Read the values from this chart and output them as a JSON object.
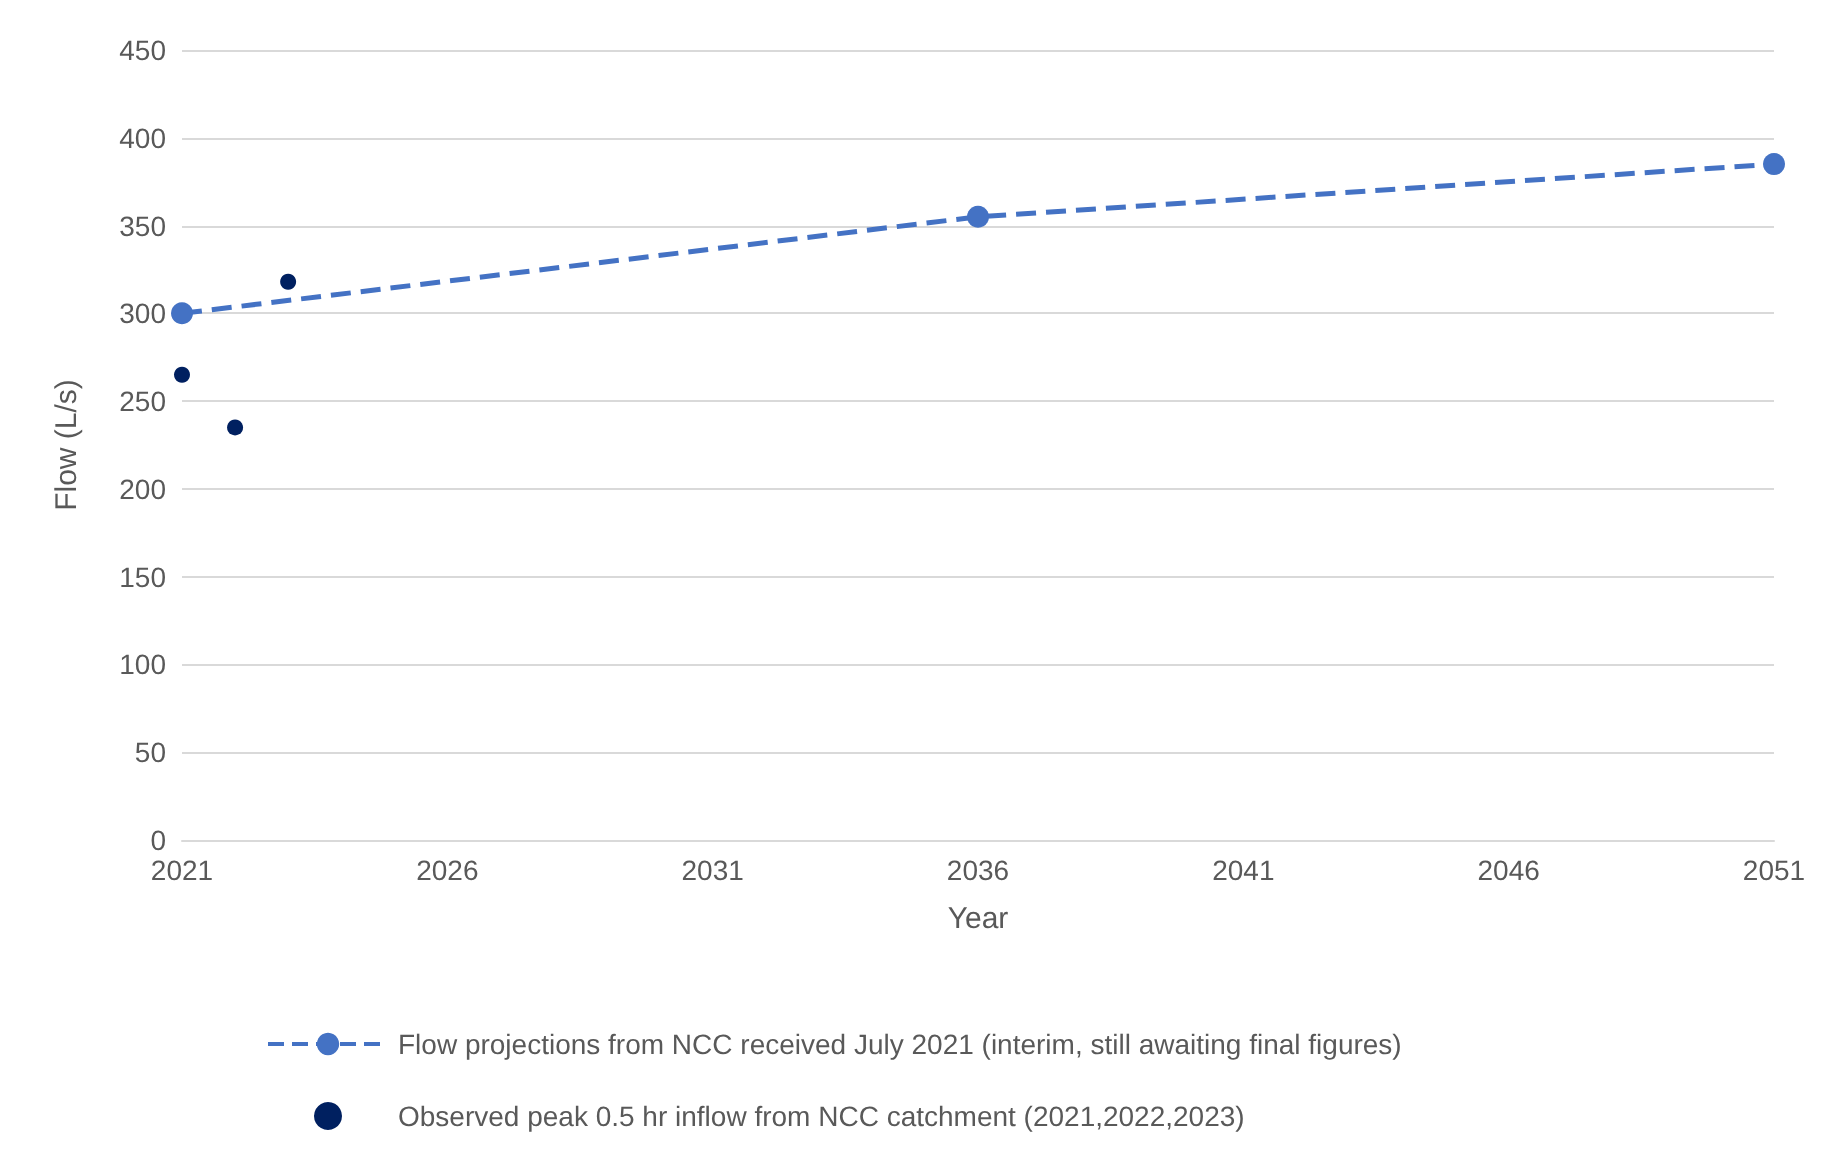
{
  "chart_data": {
    "type": "line",
    "xlabel": "Year",
    "ylabel": "Flow (L/s)",
    "xlim": [
      2021,
      2051
    ],
    "xticks": [
      2021,
      2026,
      2031,
      2036,
      2041,
      2046,
      2051
    ],
    "ylim": [
      0,
      450
    ],
    "yticks": [
      0,
      50,
      100,
      150,
      200,
      250,
      300,
      350,
      400,
      450
    ],
    "grid": "y",
    "legend": "bottom",
    "marker": "circle",
    "series": [
      {
        "name": "Flow projections from NCC received July 2021 (interim, still awaiting final figures)",
        "line_style": "dashed",
        "color": "#4472c4",
        "x": [
          2021,
          2036,
          2051
        ],
        "values": [
          300,
          355,
          385
        ]
      },
      {
        "name": "Observed peak 0.5 hr inflow from NCC catchment (2021,2022,2023)",
        "type": "scatter",
        "color": "#002060",
        "x": [
          2021,
          2022,
          2023
        ],
        "values": [
          265,
          235,
          318
        ]
      }
    ]
  }
}
